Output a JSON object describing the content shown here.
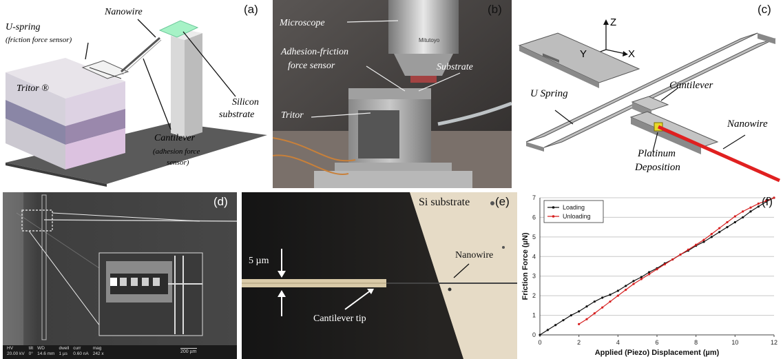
{
  "panel_a": {
    "label": "(a)",
    "nanowire": "Nanowire",
    "u_spring": "U-spring",
    "u_spring_sub": "(friction force sensor)",
    "tritor": "Tritor ®",
    "silicon": "Silicon",
    "substrate": "substrate",
    "cantilever": "Cantilever",
    "cantilever_sub1": "(adhesion force",
    "cantilever_sub2": "sensor)"
  },
  "panel_b": {
    "label": "(b)",
    "microscope": "Microscope",
    "sensor1": "Adhesion-friction",
    "sensor2": "force sensor",
    "substrate": "Substrate",
    "tritor": "Tritor",
    "brand": "Mitutoyo"
  },
  "panel_c": {
    "label": "(c)",
    "z": "Z",
    "y": "Y",
    "x": "X",
    "u_spring": "U Spring",
    "cantilever": "Cantilever",
    "nanowire": "Nanowire",
    "platinum1": "Platinum",
    "platinum2": "Deposition"
  },
  "panel_d": {
    "label": "(d)",
    "footer_labels": [
      "HV",
      "tilt",
      "WD",
      "dwell",
      "curr",
      "mag"
    ],
    "footer_values": [
      "20.00 kV",
      "0°",
      "14.6 mm",
      "1 µs",
      "0.60 nA",
      "242 x"
    ],
    "scale": "200 µm"
  },
  "panel_e": {
    "label": "(e)",
    "si_substrate": "Si substrate",
    "five_um": "5 µm",
    "nanowire": "Nanowire",
    "cantilever_tip": "Cantilever tip"
  },
  "panel_f": {
    "label": "(f)"
  },
  "chart_data": {
    "type": "line",
    "xlabel": "Applied (Piezo) Displacement (µm)",
    "ylabel": "Friction Force (µN)",
    "xlim": [
      0,
      12
    ],
    "ylim": [
      0,
      7
    ],
    "xticks": [
      0,
      2,
      4,
      6,
      8,
      10,
      12
    ],
    "yticks": [
      0,
      1,
      2,
      3,
      4,
      5,
      6,
      7
    ],
    "grid": "horizontal",
    "legend": "top-left",
    "series": [
      {
        "name": "Loading",
        "color": "#111111",
        "x": [
          0,
          0.4,
          0.8,
          1.2,
          1.6,
          2.0,
          2.4,
          2.8,
          3.2,
          3.6,
          4.0,
          4.4,
          4.8,
          5.2,
          5.6,
          6.0,
          6.4,
          6.8,
          7.2,
          7.6,
          8.0,
          8.4,
          8.8,
          9.2,
          9.6,
          10.0,
          10.4,
          10.8,
          11.2,
          11.6,
          12.0
        ],
        "y": [
          0,
          0.25,
          0.5,
          0.75,
          1.0,
          1.2,
          1.45,
          1.7,
          1.9,
          2.05,
          2.25,
          2.5,
          2.75,
          2.95,
          3.2,
          3.4,
          3.65,
          3.85,
          4.1,
          4.3,
          4.55,
          4.75,
          5.0,
          5.25,
          5.5,
          5.75,
          6.0,
          6.3,
          6.55,
          6.8,
          7.0
        ]
      },
      {
        "name": "Unloading",
        "color": "#d62020",
        "x": [
          2.0,
          2.4,
          2.8,
          3.2,
          3.6,
          4.0,
          4.4,
          4.8,
          5.2,
          5.6,
          6.0,
          6.4,
          6.8,
          7.2,
          7.6,
          8.0,
          8.4,
          8.8,
          9.2,
          9.6,
          10.0,
          10.4,
          10.8,
          11.2,
          11.6,
          12.0
        ],
        "y": [
          0.55,
          0.8,
          1.1,
          1.4,
          1.7,
          2.0,
          2.3,
          2.6,
          2.85,
          3.1,
          3.35,
          3.6,
          3.85,
          4.1,
          4.35,
          4.6,
          4.85,
          5.15,
          5.45,
          5.75,
          6.05,
          6.3,
          6.5,
          6.7,
          6.85,
          7.0
        ]
      }
    ]
  }
}
